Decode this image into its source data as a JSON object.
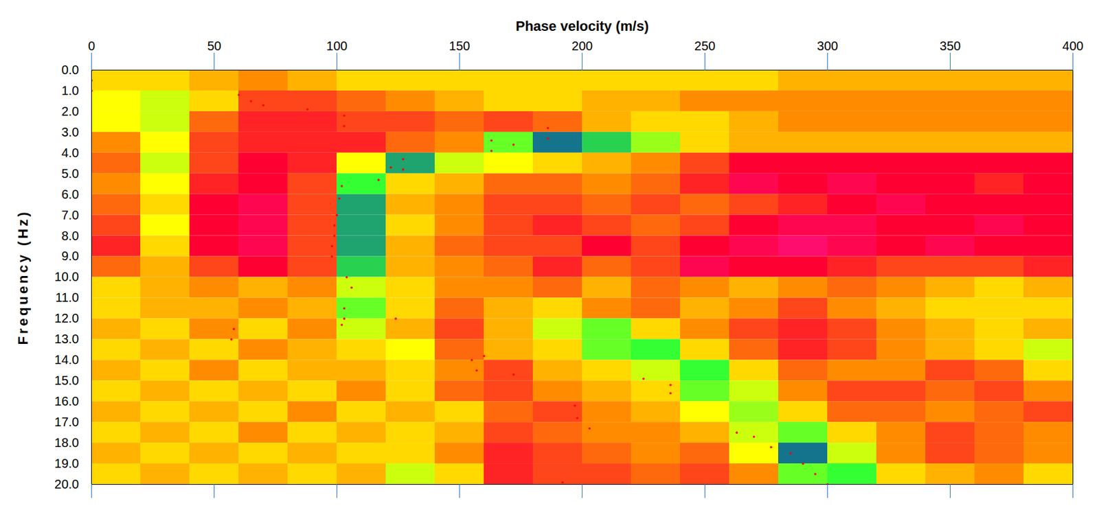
{
  "chart_data": {
    "type": "heatmap",
    "x_label": "Phase velocity (m/s)",
    "y_label": "Frequency (Hz)",
    "xlim": [
      0,
      400
    ],
    "xticks": [
      0,
      50,
      100,
      150,
      200,
      250,
      300,
      350,
      400
    ],
    "ylim": [
      0,
      20
    ],
    "yticks": [
      {
        "value": 0,
        "label": "0.0"
      },
      {
        "value": 1,
        "label": "1.0"
      },
      {
        "value": 2,
        "label": "2.0"
      },
      {
        "value": 3,
        "label": "3.0"
      },
      {
        "value": 4,
        "label": "4.0"
      },
      {
        "value": 5,
        "label": "5.0"
      },
      {
        "value": 6,
        "label": "6.0"
      },
      {
        "value": 7,
        "label": "7.0"
      },
      {
        "value": 8,
        "label": "8.0"
      },
      {
        "value": 9,
        "label": "9.0"
      },
      {
        "value": 10,
        "label": "10.0"
      },
      {
        "value": 11,
        "label": "11.0"
      },
      {
        "value": 12,
        "label": "12.0"
      },
      {
        "value": 13,
        "label": "13.0"
      },
      {
        "value": 14,
        "label": "14.0"
      },
      {
        "value": 15,
        "label": "15.0"
      },
      {
        "value": 16,
        "label": "16.0"
      },
      {
        "value": 17,
        "label": "17.0"
      },
      {
        "value": 18,
        "label": "18.0"
      },
      {
        "value": 19,
        "label": "19.0"
      },
      {
        "value": 20,
        "label": "20.0"
      }
    ],
    "cells": {
      "velocity_bins": [
        0,
        20,
        40,
        60,
        80,
        100,
        120,
        140,
        160,
        180,
        200,
        220,
        240,
        260,
        280,
        300,
        320,
        340,
        360,
        380,
        400
      ],
      "frequency_bins": [
        0,
        1,
        2,
        3,
        4,
        5,
        6,
        7,
        8,
        9,
        10,
        11,
        12,
        13,
        14,
        15,
        16,
        17,
        18,
        19,
        20
      ],
      "zlim": [
        0,
        1
      ],
      "values": [
        [
          0.5,
          0.5,
          0.45,
          0.4,
          0.45,
          0.5,
          0.5,
          0.5,
          0.5,
          0.5,
          0.5,
          0.5,
          0.5,
          0.5,
          0.45,
          0.45,
          0.45,
          0.45,
          0.45,
          0.45
        ],
        [
          0.55,
          0.6,
          0.5,
          0.3,
          0.3,
          0.35,
          0.4,
          0.45,
          0.5,
          0.5,
          0.45,
          0.45,
          0.4,
          0.4,
          0.4,
          0.4,
          0.4,
          0.4,
          0.4,
          0.4
        ],
        [
          0.55,
          0.6,
          0.35,
          0.25,
          0.25,
          0.3,
          0.3,
          0.35,
          0.3,
          0.35,
          0.45,
          0.5,
          0.5,
          0.45,
          0.4,
          0.4,
          0.4,
          0.4,
          0.4,
          0.4
        ],
        [
          0.4,
          0.55,
          0.3,
          0.25,
          0.25,
          0.25,
          0.35,
          0.4,
          0.7,
          0.9,
          0.8,
          0.65,
          0.5,
          0.45,
          0.45,
          0.45,
          0.45,
          0.45,
          0.45,
          0.45
        ],
        [
          0.35,
          0.6,
          0.3,
          0.2,
          0.25,
          0.55,
          0.85,
          0.6,
          0.55,
          0.5,
          0.45,
          0.4,
          0.3,
          0.2,
          0.2,
          0.2,
          0.2,
          0.2,
          0.2,
          0.2
        ],
        [
          0.4,
          0.55,
          0.25,
          0.2,
          0.3,
          0.75,
          0.5,
          0.45,
          0.35,
          0.35,
          0.4,
          0.35,
          0.25,
          0.15,
          0.2,
          0.15,
          0.2,
          0.2,
          0.25,
          0.2
        ],
        [
          0.35,
          0.5,
          0.2,
          0.15,
          0.3,
          0.85,
          0.45,
          0.4,
          0.3,
          0.3,
          0.35,
          0.3,
          0.35,
          0.3,
          0.25,
          0.2,
          0.15,
          0.2,
          0.2,
          0.2
        ],
        [
          0.3,
          0.55,
          0.2,
          0.15,
          0.3,
          0.85,
          0.5,
          0.4,
          0.3,
          0.25,
          0.3,
          0.35,
          0.3,
          0.2,
          0.15,
          0.15,
          0.2,
          0.2,
          0.15,
          0.2
        ],
        [
          0.25,
          0.5,
          0.2,
          0.15,
          0.3,
          0.85,
          0.45,
          0.35,
          0.3,
          0.3,
          0.2,
          0.3,
          0.2,
          0.15,
          0.1,
          0.15,
          0.2,
          0.15,
          0.2,
          0.2
        ],
        [
          0.35,
          0.45,
          0.3,
          0.2,
          0.3,
          0.8,
          0.45,
          0.4,
          0.35,
          0.25,
          0.35,
          0.3,
          0.15,
          0.2,
          0.2,
          0.25,
          0.3,
          0.3,
          0.3,
          0.25
        ],
        [
          0.5,
          0.45,
          0.4,
          0.45,
          0.4,
          0.6,
          0.5,
          0.4,
          0.4,
          0.35,
          0.45,
          0.35,
          0.4,
          0.45,
          0.4,
          0.35,
          0.4,
          0.45,
          0.5,
          0.45
        ],
        [
          0.5,
          0.45,
          0.45,
          0.4,
          0.45,
          0.7,
          0.5,
          0.35,
          0.45,
          0.5,
          0.4,
          0.35,
          0.45,
          0.4,
          0.3,
          0.4,
          0.45,
          0.5,
          0.5,
          0.5
        ],
        [
          0.45,
          0.5,
          0.4,
          0.5,
          0.4,
          0.6,
          0.45,
          0.3,
          0.45,
          0.6,
          0.7,
          0.5,
          0.4,
          0.3,
          0.25,
          0.3,
          0.4,
          0.45,
          0.5,
          0.45
        ],
        [
          0.5,
          0.45,
          0.5,
          0.4,
          0.45,
          0.5,
          0.55,
          0.35,
          0.45,
          0.5,
          0.7,
          0.75,
          0.5,
          0.35,
          0.25,
          0.3,
          0.4,
          0.45,
          0.5,
          0.6
        ],
        [
          0.45,
          0.5,
          0.4,
          0.5,
          0.45,
          0.45,
          0.5,
          0.4,
          0.3,
          0.45,
          0.5,
          0.6,
          0.75,
          0.5,
          0.35,
          0.4,
          0.4,
          0.3,
          0.35,
          0.5
        ],
        [
          0.5,
          0.45,
          0.5,
          0.45,
          0.5,
          0.4,
          0.5,
          0.35,
          0.3,
          0.4,
          0.45,
          0.5,
          0.7,
          0.6,
          0.4,
          0.3,
          0.3,
          0.35,
          0.3,
          0.4
        ],
        [
          0.45,
          0.5,
          0.45,
          0.5,
          0.4,
          0.5,
          0.45,
          0.5,
          0.35,
          0.3,
          0.4,
          0.45,
          0.55,
          0.65,
          0.5,
          0.35,
          0.35,
          0.4,
          0.35,
          0.3
        ],
        [
          0.5,
          0.45,
          0.5,
          0.4,
          0.5,
          0.45,
          0.5,
          0.45,
          0.3,
          0.35,
          0.4,
          0.4,
          0.45,
          0.6,
          0.7,
          0.5,
          0.4,
          0.3,
          0.35,
          0.4
        ],
        [
          0.45,
          0.5,
          0.45,
          0.5,
          0.45,
          0.5,
          0.5,
          0.4,
          0.25,
          0.3,
          0.35,
          0.4,
          0.35,
          0.55,
          0.9,
          0.6,
          0.4,
          0.3,
          0.35,
          0.4
        ],
        [
          0.5,
          0.45,
          0.5,
          0.45,
          0.5,
          0.45,
          0.6,
          0.5,
          0.25,
          0.3,
          0.3,
          0.35,
          0.3,
          0.4,
          0.7,
          0.75,
          0.5,
          0.45,
          0.4,
          0.5
        ]
      ]
    },
    "picks": {
      "color": "#ff0000",
      "marker": "dot",
      "x": [
        0,
        0,
        0,
        60,
        65,
        70,
        88,
        103,
        103,
        163,
        163,
        172,
        186,
        186,
        127,
        127,
        122,
        117,
        102,
        101,
        100,
        99,
        99,
        98,
        98,
        104,
        106,
        103,
        103,
        102,
        124,
        58,
        57,
        155,
        157,
        160,
        172,
        225,
        236,
        236,
        197,
        198,
        203,
        263,
        270,
        277,
        285,
        290,
        295,
        300,
        192
      ],
      "y": [
        0,
        0.5,
        1,
        1.2,
        1.5,
        1.7,
        1.9,
        2.2,
        2.7,
        3.4,
        3.9,
        3.6,
        3.3,
        2.8,
        4.3,
        4.8,
        4.7,
        5.3,
        5.6,
        6.2,
        7.0,
        7.5,
        8.0,
        8.5,
        9.0,
        10,
        10.5,
        11.5,
        12,
        12.3,
        12,
        12.5,
        13,
        14,
        14.5,
        13.8,
        14.7,
        14.9,
        15.2,
        15.6,
        16.2,
        16.8,
        17.3,
        17.5,
        17.7,
        18.2,
        18.5,
        19,
        19.5,
        20,
        19.9
      ]
    }
  }
}
